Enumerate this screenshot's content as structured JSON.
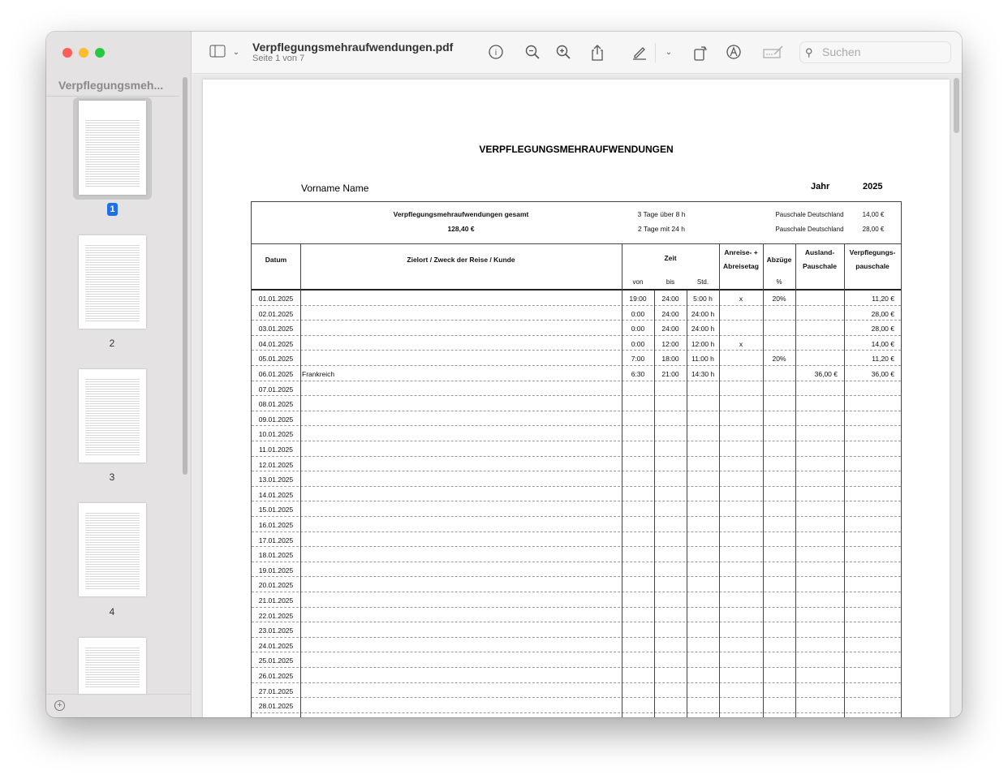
{
  "window": {
    "title": "Verpflegungsmehraufwendungen.pdf",
    "subtitle": "Seite 1 von 7",
    "search_placeholder": "Suchen"
  },
  "sidebar": {
    "title": "Verpflegungsmeh...",
    "pages": [
      "1",
      "2",
      "3",
      "4"
    ],
    "selected_page": 1
  },
  "icons": [
    "sidebar-toggle-icon",
    "chevron-down-icon",
    "info-icon",
    "zoom-out-icon",
    "zoom-in-icon",
    "share-icon",
    "markup-pen-icon",
    "rotate-icon",
    "markup-circle-icon",
    "signature-icon",
    "search-icon",
    "add-icon"
  ],
  "document": {
    "title": "VERPFLEGUNGSMEHRAUFWENDUNGEN",
    "name": "Vorname Name",
    "year_label": "Jahr",
    "year": "2025",
    "summary": {
      "label": "Verpflegungsmehraufwendungen gesamt",
      "total": "128,40 €",
      "rule1": "3 Tage über 8 h",
      "rule2": "2 Tage mit 24 h",
      "pauschale1_label": "Pauschale Deutschland",
      "pauschale1": "14,00 €",
      "pauschale2_label": "Pauschale Deutschland",
      "pauschale2": "28,00 €"
    },
    "headers": {
      "datum": "Datum",
      "zielort": "Zielort / Zweck der Reise / Kunde",
      "zeit": "Zeit",
      "von": "von",
      "bis": "bis",
      "std": "Std.",
      "anreise": "Anreise- +",
      "abreise": "Abreisetag",
      "abzuege": "Abzüge",
      "prozent": "%",
      "ausland1": "Ausland-",
      "ausland2": "Pauschale",
      "verpf1": "Verpflegungs-",
      "verpf2": "pauschale"
    },
    "rows": [
      [
        "01.01.2025",
        "",
        "19:00",
        "24:00",
        "5:00 h",
        "x",
        "20%",
        "",
        "11,20 €"
      ],
      [
        "02.01.2025",
        "",
        "0:00",
        "24:00",
        "24:00 h",
        "",
        "",
        "",
        "28,00 €"
      ],
      [
        "03.01.2025",
        "",
        "0:00",
        "24:00",
        "24:00 h",
        "",
        "",
        "",
        "28,00 €"
      ],
      [
        "04.01.2025",
        "",
        "0:00",
        "12:00",
        "12:00 h",
        "x",
        "",
        "",
        "14,00 €"
      ],
      [
        "05.01.2025",
        "",
        "7:00",
        "18:00",
        "11:00 h",
        "",
        "20%",
        "",
        "11,20 €"
      ],
      [
        "06.01.2025",
        "Frankreich",
        "6:30",
        "21:00",
        "14:30 h",
        "",
        "",
        "36,00 €",
        "36,00 €"
      ],
      [
        "07.01.2025"
      ],
      [
        "08.01.2025"
      ],
      [
        "09.01.2025"
      ],
      [
        "10.01.2025"
      ],
      [
        "11.01.2025"
      ],
      [
        "12.01.2025"
      ],
      [
        "13.01.2025"
      ],
      [
        "14.01.2025"
      ],
      [
        "15.01.2025"
      ],
      [
        "16.01.2025"
      ],
      [
        "17.01.2025"
      ],
      [
        "18.01.2025"
      ],
      [
        "19.01.2025"
      ],
      [
        "20.01.2025"
      ],
      [
        "21.01.2025"
      ],
      [
        "22.01.2025"
      ],
      [
        "23.01.2025"
      ],
      [
        "24.01.2025"
      ],
      [
        "25.01.2025"
      ],
      [
        "26.01.2025"
      ],
      [
        "27.01.2025"
      ],
      [
        "28.01.2025"
      ]
    ]
  }
}
